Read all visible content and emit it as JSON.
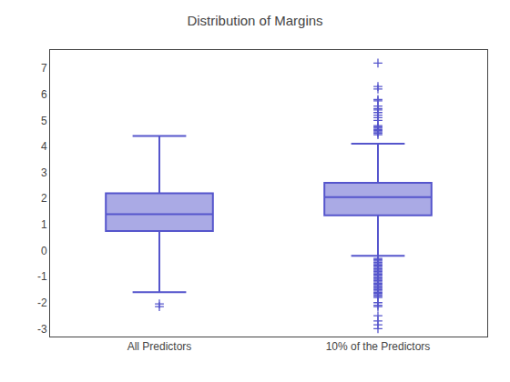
{
  "chart_data": {
    "type": "box",
    "title": "Distribution of Margins",
    "categories": [
      "All Predictors",
      "10% of the Predictors"
    ],
    "boxes": [
      {
        "median": 1.4,
        "q1": 0.75,
        "q3": 2.2,
        "whisker_low": -1.6,
        "whisker_high": 4.4,
        "outliers": [
          -2.05,
          -2.15
        ]
      },
      {
        "median": 2.05,
        "q1": 1.35,
        "q3": 2.6,
        "whisker_low": -0.2,
        "whisker_high": 4.1,
        "outliers": [
          -0.3,
          -0.35,
          -0.4,
          -0.45,
          -0.5,
          -0.55,
          -0.6,
          -0.65,
          -0.7,
          -0.75,
          -0.8,
          -0.85,
          -0.9,
          -0.95,
          -1.0,
          -1.05,
          -1.1,
          -1.15,
          -1.2,
          -1.25,
          -1.3,
          -1.35,
          -1.4,
          -1.45,
          -1.5,
          -1.55,
          -1.6,
          -1.65,
          -1.7,
          -1.75,
          -1.8,
          -2.0,
          -2.1,
          -2.15,
          -2.5,
          -2.7,
          -2.85,
          -3.0,
          4.45,
          4.5,
          4.55,
          4.6,
          4.65,
          4.7,
          4.75,
          4.8,
          5.0,
          5.1,
          5.2,
          5.3,
          5.4,
          5.45,
          5.55,
          5.75,
          5.8,
          6.2,
          6.3,
          7.2
        ]
      }
    ],
    "color": "#5555cc",
    "marker": "cross",
    "ylim": [
      -3.3,
      7.7
    ],
    "yticks": [
      -3,
      -2,
      -1,
      0,
      1,
      2,
      3,
      4,
      5,
      6,
      7
    ],
    "grid": false
  }
}
